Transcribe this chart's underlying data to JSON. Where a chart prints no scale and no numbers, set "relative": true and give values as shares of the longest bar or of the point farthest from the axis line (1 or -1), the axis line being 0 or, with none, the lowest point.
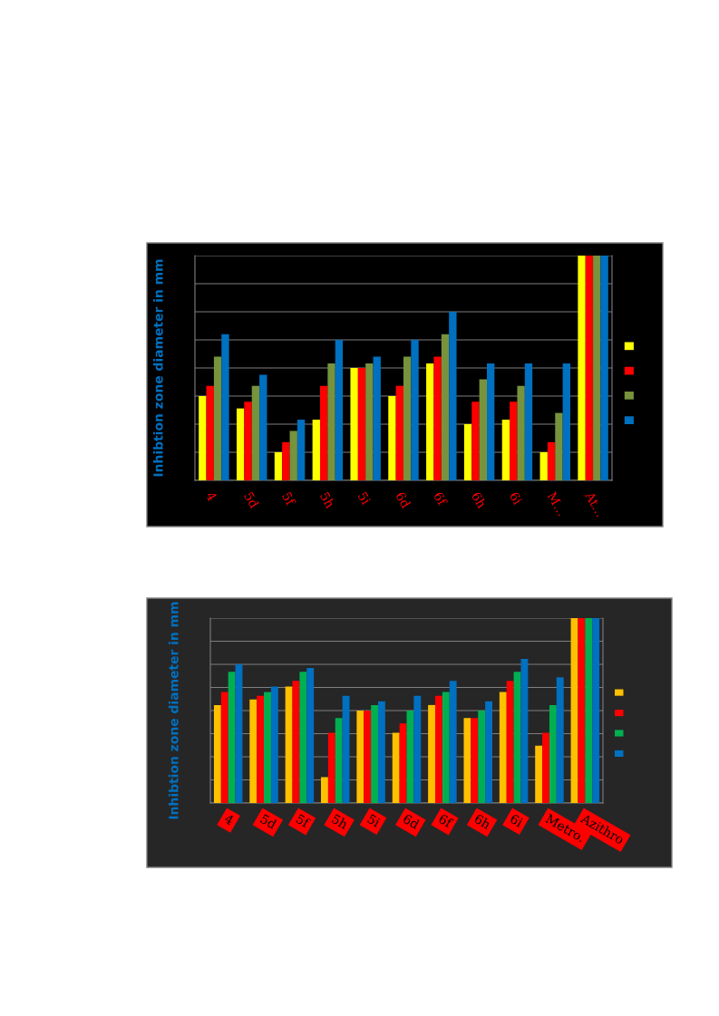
{
  "chart_data": [
    {
      "type": "bar",
      "relative": true,
      "ylabel": "Inhibtion zone diameter in mm",
      "grid": "y",
      "categories": [
        "4",
        "5d",
        "5f",
        "5h",
        "5i",
        "6d",
        "6f",
        "6h",
        "6i",
        "M…",
        "At…"
      ],
      "series": [
        {
          "color": "#ffff00",
          "values": [
            0.375,
            0.32,
            0.125,
            0.27,
            0.5,
            0.375,
            0.52,
            0.25,
            0.27,
            0.125,
            1
          ]
        },
        {
          "color": "#ff0000",
          "values": [
            0.42,
            0.35,
            0.17,
            0.42,
            0.5,
            0.42,
            0.55,
            0.35,
            0.35,
            0.17,
            1
          ]
        },
        {
          "color": "#77933c",
          "values": [
            0.55,
            0.42,
            0.22,
            0.52,
            0.52,
            0.55,
            0.65,
            0.45,
            0.42,
            0.3,
            1
          ]
        },
        {
          "color": "#0070c0",
          "values": [
            0.65,
            0.47,
            0.27,
            0.625,
            0.55,
            0.625,
            0.75,
            0.52,
            0.52,
            0.52,
            1
          ]
        }
      ]
    },
    {
      "type": "bar",
      "relative": true,
      "ylabel": "Inhibtion zone diameter in mm",
      "grid": "y",
      "categories": [
        "4",
        "5d",
        "5f",
        "5h",
        "5i",
        "6d",
        "6f",
        "6h",
        "6i",
        "Metro.",
        "Azithro"
      ],
      "series": [
        {
          "color": "#ffc000",
          "values": [
            0.53,
            0.56,
            0.63,
            0.14,
            0.5,
            0.38,
            0.53,
            0.46,
            0.6,
            0.31,
            1
          ]
        },
        {
          "color": "#ff0000",
          "values": [
            0.6,
            0.58,
            0.66,
            0.38,
            0.5,
            0.43,
            0.58,
            0.46,
            0.66,
            0.38,
            1
          ]
        },
        {
          "color": "#00b050",
          "values": [
            0.71,
            0.6,
            0.71,
            0.46,
            0.53,
            0.5,
            0.6,
            0.5,
            0.71,
            0.53,
            1
          ]
        },
        {
          "color": "#0070c0",
          "values": [
            0.75,
            0.63,
            0.73,
            0.58,
            0.55,
            0.58,
            0.66,
            0.55,
            0.78,
            0.68,
            1
          ]
        }
      ]
    }
  ]
}
